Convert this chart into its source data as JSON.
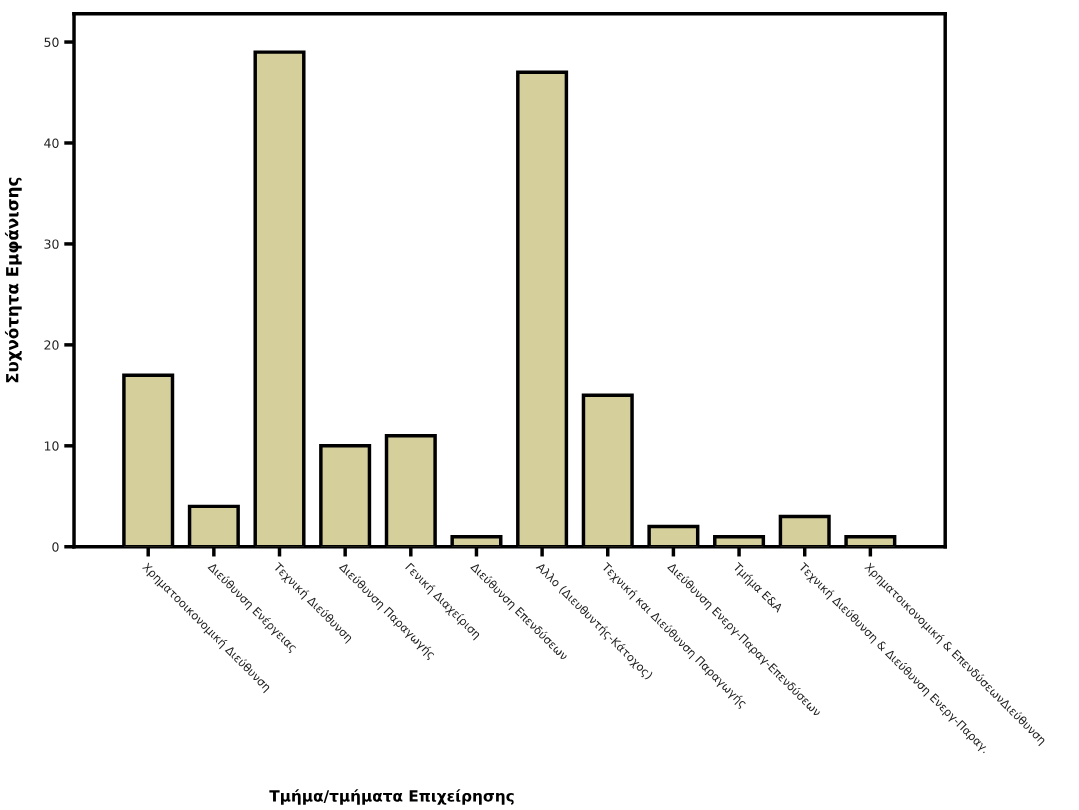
{
  "chart_data": {
    "type": "bar",
    "xlabel": "Τμήμα/τμήματα Επιχείρησης",
    "ylabel": "Συχνότητα Εμφάνισης",
    "categories": [
      "Χρηματοοικονομική Διεύθυνση",
      "Διεύθυνση Ενέργειας",
      "Τεχνική Διεύθυνση",
      "Διεύθυνση Παραγωγής",
      "Γενική Διαχείριση",
      "Διεύθυνση Επενδύσεων",
      "Αλλο (Διευθυντής-Κάτοχος)",
      "Τεχνική και Διεύθυνση Παραγωγής",
      "Διεύθυνση Ενεργ-Παραγ-Επενδύσεων",
      "Τμήμα Ε&Α",
      "Τεχνική Διεύθυνση & Διεύθυνση Ενεργ-Παραγ.",
      "Χρηματοικονομική & ΕπενδύσεωνΔιεύθυνση"
    ],
    "values": [
      17,
      4,
      49,
      10,
      11,
      1,
      47,
      15,
      2,
      1,
      3,
      1
    ],
    "color": "#d5cf9c",
    "ylim": [
      0,
      52.8
    ],
    "yticks": [
      0,
      10,
      20,
      30,
      40,
      50
    ],
    "grid": false
  }
}
